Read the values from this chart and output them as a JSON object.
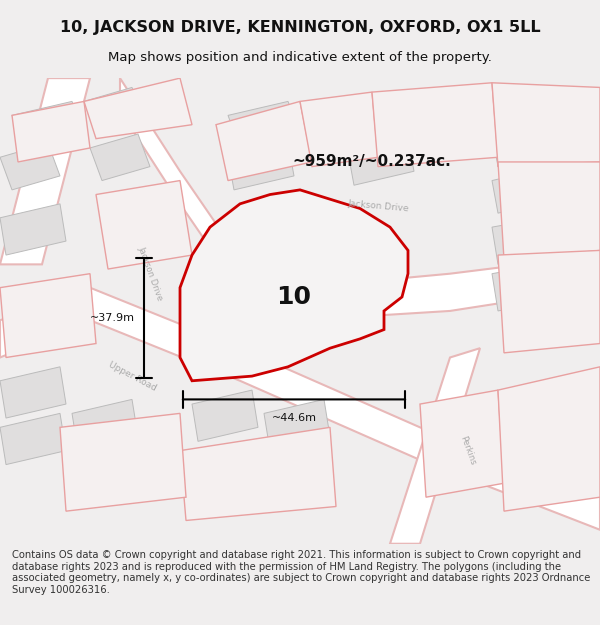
{
  "title": "10, JACKSON DRIVE, KENNINGTON, OXFORD, OX1 5LL",
  "subtitle": "Map shows position and indicative extent of the property.",
  "area_text": "~959m²/~0.237ac.",
  "width_text": "~44.6m",
  "height_text": "~37.9m",
  "property_number": "10",
  "footer_text": "Contains OS data © Crown copyright and database right 2021. This information is subject to Crown copyright and database rights 2023 and is reproduced with the permission of HM Land Registry. The polygons (including the associated geometry, namely x, y co-ordinates) are subject to Crown copyright and database rights 2023 Ordnance Survey 100026316.",
  "bg_color": "#f0eeee",
  "map_bg": "#f5f4f4",
  "road_fill": "#ffffff",
  "road_stroke": "#e8b8b8",
  "building_fill": "#e0dede",
  "building_stroke": "#cccccc",
  "property_fill": "#f5f3f3",
  "property_stroke": "#cc0000",
  "dim_color": "#111111",
  "road_label_color": "#aaaaaa",
  "title_color": "#111111",
  "footer_color": "#333333"
}
